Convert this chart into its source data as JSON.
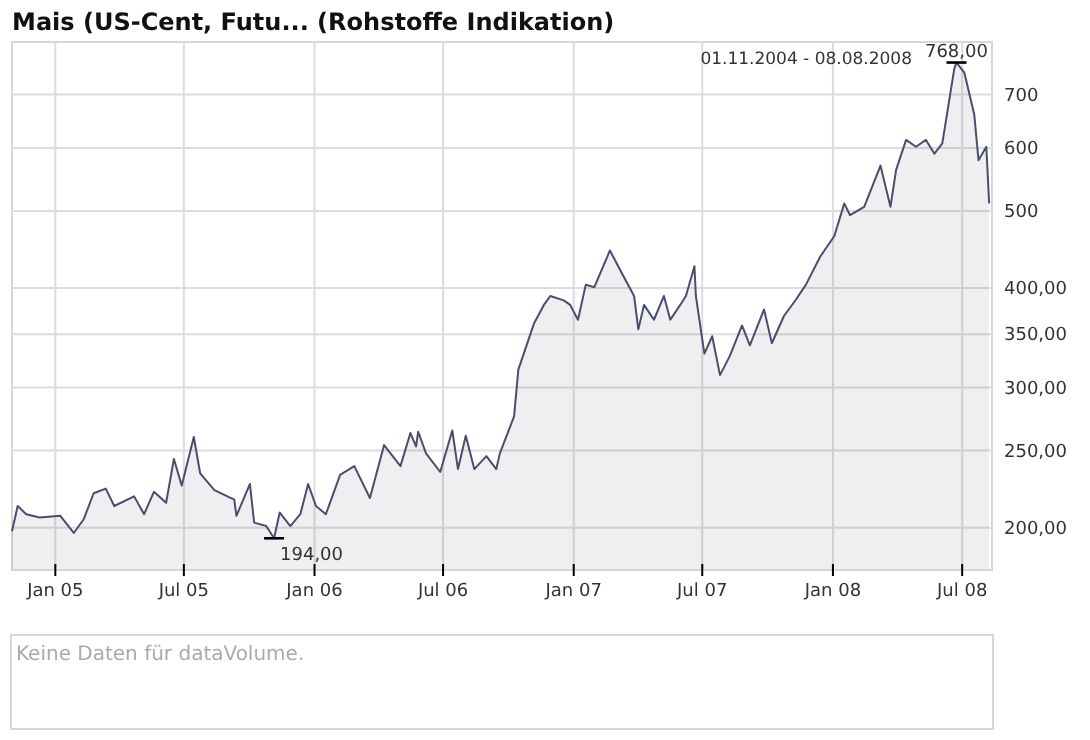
{
  "chart_data": {
    "type": "area",
    "title": "Mais (US-Cent, Futu... (Rohstoffe Indikation)",
    "log": true,
    "grid": true,
    "x": [
      "2004-11-01",
      "2004-11-09",
      "2004-11-21",
      "2004-12-10",
      "2005-01-08",
      "2005-01-27",
      "2005-02-10",
      "2005-02-24",
      "2005-03-13",
      "2005-03-25",
      "2005-04-22",
      "2005-05-06",
      "2005-05-20",
      "2005-06-06",
      "2005-06-17",
      "2005-06-28",
      "2005-07-15",
      "2005-07-24",
      "2005-08-13",
      "2005-09-10",
      "2005-09-13",
      "2005-10-02",
      "2005-10-08",
      "2005-10-25",
      "2005-11-05",
      "2005-11-13",
      "2005-11-28",
      "2005-12-12",
      "2005-12-23",
      "2006-01-03",
      "2006-01-17",
      "2006-02-06",
      "2006-02-26",
      "2006-03-20",
      "2006-04-09",
      "2006-05-02",
      "2006-05-16",
      "2006-05-24",
      "2006-05-27",
      "2006-06-07",
      "2006-06-27",
      "2006-07-14",
      "2006-07-22",
      "2006-08-02",
      "2006-08-14",
      "2006-08-31",
      "2006-09-14",
      "2006-09-19",
      "2006-10-09",
      "2006-10-15",
      "2006-11-06",
      "2006-11-20",
      "2006-11-29",
      "2006-12-18",
      "2006-12-27",
      "2007-01-07",
      "2007-01-18",
      "2007-01-30",
      "2007-02-21",
      "2007-03-07",
      "2007-03-27",
      "2007-04-02",
      "2007-04-10",
      "2007-04-24",
      "2007-05-08",
      "2007-05-17",
      "2007-05-31",
      "2007-06-08",
      "2007-06-20",
      "2007-06-22",
      "2007-07-04",
      "2007-07-15",
      "2007-07-26",
      "2007-08-09",
      "2007-08-26",
      "2007-09-06",
      "2007-09-26",
      "2007-10-07",
      "2007-10-24",
      "2007-11-10",
      "2007-11-24",
      "2007-12-14",
      "2008-01-03",
      "2008-01-17",
      "2008-01-25",
      "2008-02-14",
      "2008-03-08",
      "2008-03-22",
      "2008-03-30",
      "2008-04-13",
      "2008-04-27",
      "2008-05-11",
      "2008-05-23",
      "2008-06-03",
      "2008-06-20",
      "2008-06-23",
      "2008-07-04",
      "2008-07-18",
      "2008-07-24",
      "2008-08-04",
      "2008-08-08"
    ],
    "series": [
      {
        "color": "#4a4e6e",
        "values": [
          198,
          213,
          208,
          206,
          207,
          197,
          205,
          221,
          224,
          213,
          219,
          208,
          222,
          215,
          244,
          226,
          260,
          234,
          223,
          217,
          207,
          227,
          203,
          201,
          194,
          209,
          201,
          208,
          227,
          213,
          208,
          233,
          239,
          218,
          254,
          239,
          263,
          253,
          264,
          248,
          235,
          265,
          237,
          261,
          237,
          246,
          237,
          248,
          276,
          316,
          361,
          381,
          391,
          386,
          381,
          365,
          404,
          401,
          446,
          422,
          391,
          355,
          381,
          365,
          391,
          365,
          381,
          391,
          426,
          391,
          331,
          348,
          311,
          329,
          359,
          339,
          376,
          341,
          369,
          387,
          404,
          438,
          465,
          511,
          494,
          506,
          570,
          506,
          563,
          614,
          602,
          614,
          590,
          608,
          755,
          768,
          746,
          661,
          579,
          602,
          511
        ]
      }
    ],
    "xlim": [
      "2004-11-01",
      "2008-08-12"
    ],
    "xticks": [
      {
        "value": "2005-01-01",
        "label": "Jan 05"
      },
      {
        "value": "2005-07-01",
        "label": "Jul 05"
      },
      {
        "value": "2006-01-01",
        "label": "Jan 06"
      },
      {
        "value": "2006-07-01",
        "label": "Jul 06"
      },
      {
        "value": "2007-01-01",
        "label": "Jan 07"
      },
      {
        "value": "2007-07-01",
        "label": "Jul 07"
      },
      {
        "value": "2008-01-01",
        "label": "Jan 08"
      },
      {
        "value": "2008-07-01",
        "label": "Jul 08"
      }
    ],
    "ylim": [
      177,
      815
    ],
    "yticks": [
      {
        "value": 200,
        "label": "200,00"
      },
      {
        "value": 250,
        "label": "250,00"
      },
      {
        "value": 300,
        "label": "300,00"
      },
      {
        "value": 350,
        "label": "350,00"
      },
      {
        "value": 400,
        "label": "400,00"
      },
      500,
      600,
      700
    ],
    "annotations": [
      "01.11.2004 - 08.08.2008",
      {
        "text": "768,00",
        "x": "2008-06-23",
        "y": 768
      },
      {
        "text": "194,00",
        "x": "2005-11-05",
        "y": 194
      },
      "Keine Daten für dataVolume."
    ]
  }
}
